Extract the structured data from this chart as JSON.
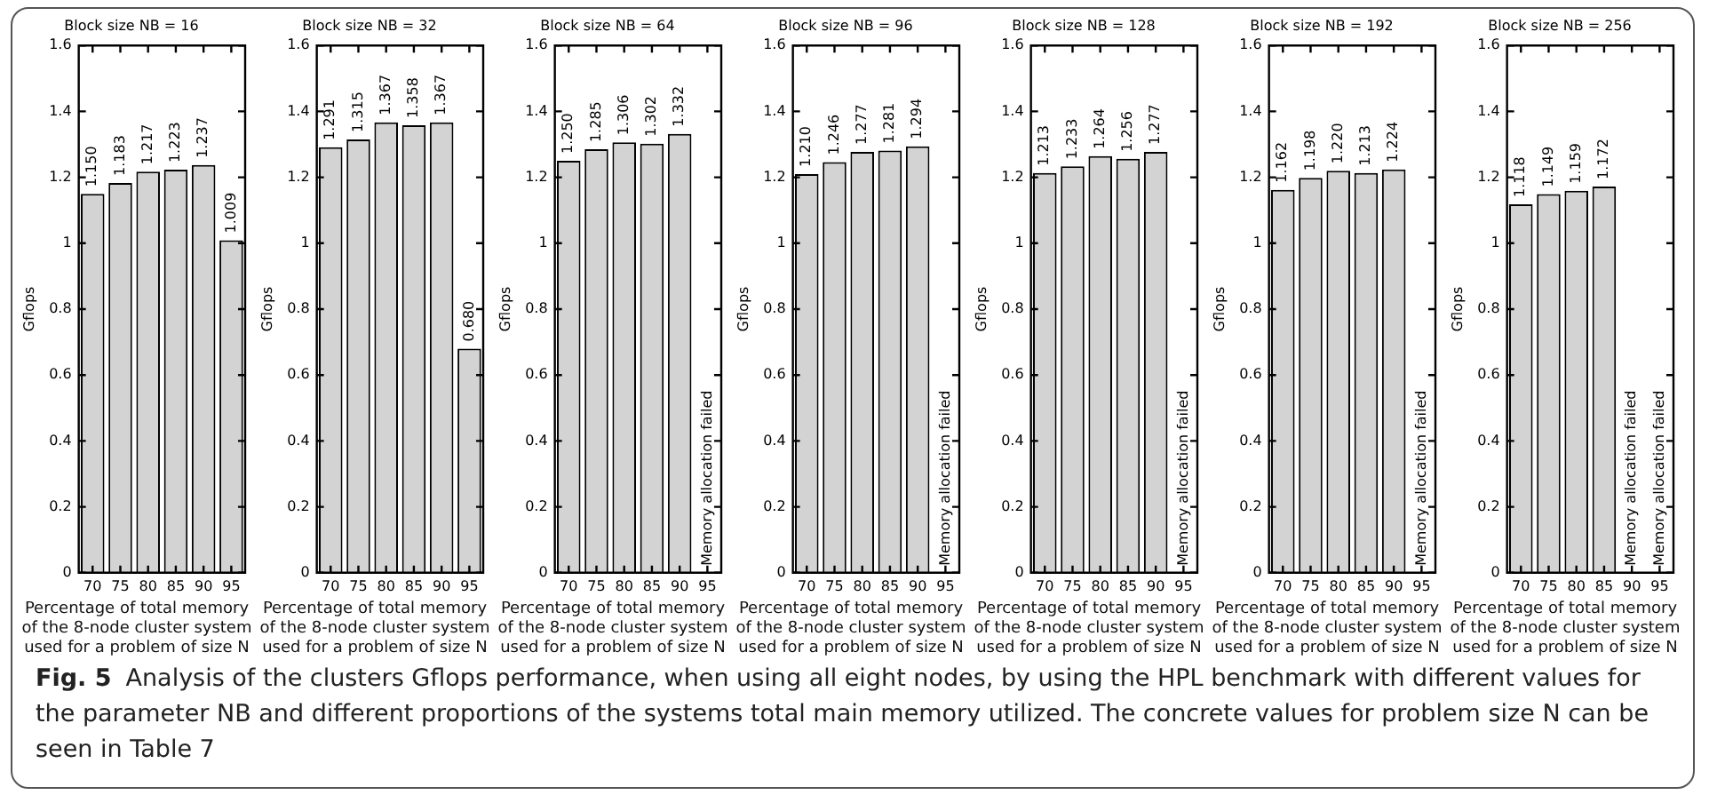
{
  "chart_data": [
    {
      "type": "bar",
      "title": "Block size NB = 16",
      "xlabel": "Percentage of total memory of the 8-node cluster system used for a problem of size N",
      "ylabel": "Gflops",
      "categories": [
        "70",
        "75",
        "80",
        "85",
        "90",
        "95"
      ],
      "values": [
        1.15,
        1.183,
        1.217,
        1.223,
        1.237,
        1.009
      ],
      "value_labels": [
        "1.150",
        "1.183",
        "1.217",
        "1.223",
        "1.237",
        "1.009"
      ],
      "color": "#d3d3d3",
      "ylim": [
        0,
        1.6
      ],
      "yticks": [
        0,
        0.2,
        0.4,
        0.6,
        0.8,
        1,
        1.2,
        1.4,
        1.6
      ],
      "grid": false,
      "legend": false,
      "annotations": [
        "Fig. 5",
        "Analysis of the clusters Gflops performance, when using all eight nodes, by using the HPL benchmark with different values for the parameter NB and different proportions of the systems total main memory utilized. The concrete values for problem size N can be seen in Table 7"
      ]
    },
    {
      "type": "bar",
      "title": "Block size NB = 32",
      "xlabel": "Percentage of total memory of the 8-node cluster system used for a problem of size N",
      "ylabel": "Gflops",
      "categories": [
        "70",
        "75",
        "80",
        "85",
        "90",
        "95"
      ],
      "values": [
        1.291,
        1.315,
        1.367,
        1.358,
        1.367,
        0.68
      ],
      "value_labels": [
        "1.291",
        "1.315",
        "1.367",
        "1.358",
        "1.367",
        "0.680"
      ],
      "color": "#d3d3d3",
      "ylim": [
        0,
        1.6
      ],
      "yticks": [
        0,
        0.2,
        0.4,
        0.6,
        0.8,
        1,
        1.2,
        1.4,
        1.6
      ],
      "grid": false,
      "legend": false
    },
    {
      "type": "bar",
      "title": "Block size NB = 64",
      "xlabel": "Percentage of total memory of the 8-node cluster system used for a problem of size N",
      "ylabel": "Gflops",
      "categories": [
        "70",
        "75",
        "80",
        "85",
        "90",
        "95"
      ],
      "values": [
        1.25,
        1.285,
        1.306,
        1.302,
        1.332,
        null
      ],
      "value_labels": [
        "1.250",
        "1.285",
        "1.306",
        "1.302",
        "1.332",
        null
      ],
      "color": "#d3d3d3",
      "ylim": [
        0,
        1.6
      ],
      "yticks": [
        0,
        0.2,
        0.4,
        0.6,
        0.8,
        1,
        1.2,
        1.4,
        1.6
      ],
      "grid": false,
      "legend": false,
      "annotations": [
        "Memory allocation failed"
      ]
    },
    {
      "type": "bar",
      "title": "Block size NB = 96",
      "xlabel": "Percentage of total memory of the 8-node cluster system used for a problem of size N",
      "ylabel": "Gflops",
      "categories": [
        "70",
        "75",
        "80",
        "85",
        "90",
        "95"
      ],
      "values": [
        1.21,
        1.246,
        1.277,
        1.281,
        1.294,
        null
      ],
      "value_labels": [
        "1.210",
        "1.246",
        "1.277",
        "1.281",
        "1.294",
        null
      ],
      "color": "#d3d3d3",
      "ylim": [
        0,
        1.6
      ],
      "yticks": [
        0,
        0.2,
        0.4,
        0.6,
        0.8,
        1,
        1.2,
        1.4,
        1.6
      ],
      "grid": false,
      "legend": false,
      "annotations": [
        "Memory allocation failed"
      ]
    },
    {
      "type": "bar",
      "title": "Block size NB = 128",
      "xlabel": "Percentage of total memory of the 8-node cluster system used for a problem of size N",
      "ylabel": "Gflops",
      "categories": [
        "70",
        "75",
        "80",
        "85",
        "90",
        "95"
      ],
      "values": [
        1.213,
        1.233,
        1.264,
        1.256,
        1.277,
        null
      ],
      "value_labels": [
        "1.213",
        "1.233",
        "1.264",
        "1.256",
        "1.277",
        null
      ],
      "color": "#d3d3d3",
      "ylim": [
        0,
        1.6
      ],
      "yticks": [
        0,
        0.2,
        0.4,
        0.6,
        0.8,
        1,
        1.2,
        1.4,
        1.6
      ],
      "grid": false,
      "legend": false,
      "annotations": [
        "Memory allocation failed"
      ]
    },
    {
      "type": "bar",
      "title": "Block size NB = 192",
      "xlabel": "Percentage of total memory of the 8-node cluster system used for a problem of size N",
      "ylabel": "Gflops",
      "categories": [
        "70",
        "75",
        "80",
        "85",
        "90",
        "95"
      ],
      "values": [
        1.162,
        1.198,
        1.22,
        1.213,
        1.224,
        null
      ],
      "value_labels": [
        "1.162",
        "1.198",
        "1.220",
        "1.213",
        "1.224",
        null
      ],
      "color": "#d3d3d3",
      "ylim": [
        0,
        1.6
      ],
      "yticks": [
        0,
        0.2,
        0.4,
        0.6,
        0.8,
        1,
        1.2,
        1.4,
        1.6
      ],
      "grid": false,
      "legend": false,
      "annotations": [
        "Memory allocation failed"
      ]
    },
    {
      "type": "bar",
      "title": "Block size NB = 256",
      "xlabel": "Percentage of total memory of the 8-node cluster system used for a problem of size N",
      "ylabel": "Gflops",
      "categories": [
        "70",
        "75",
        "80",
        "85",
        "90",
        "95"
      ],
      "values": [
        1.118,
        1.149,
        1.159,
        1.172,
        null,
        null
      ],
      "value_labels": [
        "1.118",
        "1.149",
        "1.159",
        "1.172",
        null,
        null
      ],
      "color": "#d3d3d3",
      "ylim": [
        0,
        1.6
      ],
      "yticks": [
        0,
        0.2,
        0.4,
        0.6,
        0.8,
        1,
        1.2,
        1.4,
        1.6
      ],
      "grid": false,
      "legend": false,
      "annotations": [
        "Memory allocation failed",
        "Memory allocation failed"
      ]
    }
  ]
}
